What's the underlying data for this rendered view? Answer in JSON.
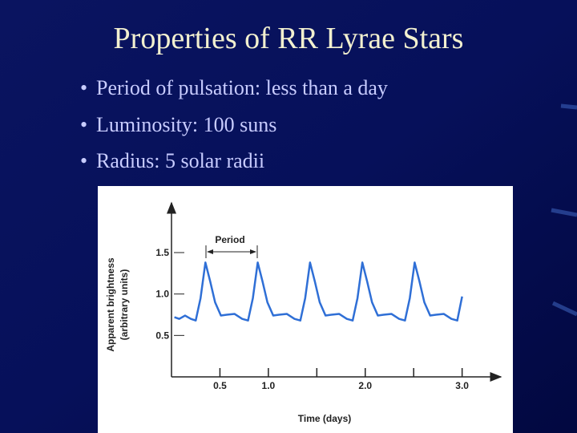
{
  "slide": {
    "title": "Properties of RR Lyrae Stars",
    "bullets": [
      "Period of pulsation: less than a day",
      "Luminosity: 100 suns",
      "Radius: 5 solar radii"
    ]
  },
  "chart_data": {
    "type": "line",
    "x_label": "Time (days)",
    "y_label": [
      "Apparent brightness",
      "(arbitrary units)"
    ],
    "annotation": "Period",
    "color": "#2f6fd6",
    "xlim": [
      0,
      3.4
    ],
    "ylim": [
      0,
      2.1
    ],
    "xticks": [
      0.5,
      {
        "value": 1,
        "label": "1.0"
      },
      {
        "value": 2,
        "label": "2.0"
      },
      {
        "value": 3,
        "label": "3.0"
      }
    ],
    "xminorticks": [
      1.5,
      2.5
    ],
    "yticks": [
      0.5,
      {
        "value": 1,
        "label": "1.0"
      },
      1.5
    ],
    "x": [
      0.03,
      0.08,
      0.14,
      0.2,
      0.25,
      0.3,
      0.35,
      0.4,
      0.45,
      0.51,
      0.57,
      0.65,
      0.73,
      0.79,
      0.84,
      0.89,
      0.94,
      0.99,
      1.05,
      1.11,
      1.19,
      1.27,
      1.33,
      1.38,
      1.43,
      1.48,
      1.53,
      1.59,
      1.65,
      1.73,
      1.81,
      1.87,
      1.92,
      1.97,
      2.02,
      2.07,
      2.13,
      2.19,
      2.27,
      2.35,
      2.41,
      2.46,
      2.51,
      2.56,
      2.61,
      2.67,
      2.73,
      2.81,
      2.89,
      2.95,
      3.0
    ],
    "values": [
      0.72,
      0.7,
      0.74,
      0.7,
      0.68,
      0.95,
      1.38,
      1.15,
      0.9,
      0.74,
      0.75,
      0.76,
      0.7,
      0.68,
      0.95,
      1.38,
      1.15,
      0.9,
      0.74,
      0.75,
      0.76,
      0.7,
      0.68,
      0.95,
      1.38,
      1.15,
      0.9,
      0.74,
      0.75,
      0.76,
      0.7,
      0.68,
      0.95,
      1.38,
      1.15,
      0.9,
      0.74,
      0.75,
      0.76,
      0.7,
      0.68,
      0.95,
      1.38,
      1.15,
      0.9,
      0.74,
      0.75,
      0.76,
      0.7,
      0.68,
      0.97
    ]
  }
}
